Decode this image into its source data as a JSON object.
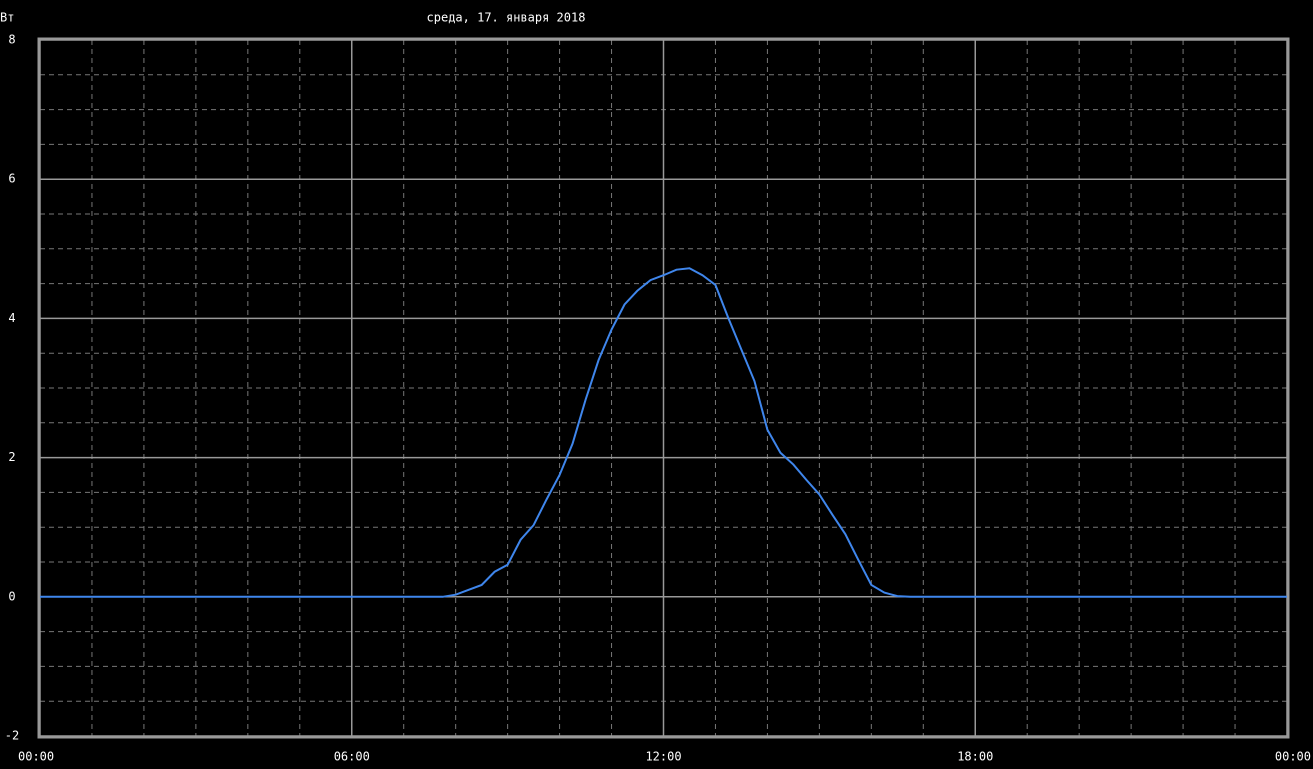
{
  "chart_data": {
    "type": "line",
    "title": "среда, 17. января 2018",
    "y_label": "Вт",
    "x": [
      0,
      7.75,
      8.0,
      8.25,
      8.5,
      8.75,
      9.0,
      9.25,
      9.5,
      9.75,
      10.0,
      10.25,
      10.5,
      10.75,
      11.0,
      11.25,
      11.5,
      11.75,
      12.0,
      12.25,
      12.5,
      12.75,
      13.0,
      13.25,
      13.5,
      13.75,
      14.0,
      14.25,
      14.5,
      14.75,
      15.0,
      15.25,
      15.5,
      15.75,
      16.0,
      16.25,
      16.5,
      16.75,
      24
    ],
    "series": [
      {
        "name": "Вт",
        "color": "#3f86ec",
        "values": [
          0,
          0,
          0.03,
          0.1,
          0.17,
          0.36,
          0.46,
          0.82,
          1.03,
          1.4,
          1.75,
          2.2,
          2.83,
          3.4,
          3.84,
          4.2,
          4.4,
          4.55,
          4.62,
          4.7,
          4.72,
          4.62,
          4.48,
          4.0,
          3.55,
          3.1,
          2.4,
          2.07,
          1.9,
          1.68,
          1.47,
          1.18,
          0.9,
          0.53,
          0.17,
          0.06,
          0.01,
          0,
          0
        ]
      }
    ],
    "xlim": [
      0,
      24
    ],
    "xticks": [
      {
        "value": 0,
        "label": "00:00"
      },
      {
        "value": 6,
        "label": "06:00"
      },
      {
        "value": 12,
        "label": "12:00"
      },
      {
        "value": 18,
        "label": "18:00"
      },
      {
        "value": 24,
        "label": "00:00"
      }
    ],
    "ylim": [
      -2,
      8
    ],
    "yticks": [
      -2,
      0,
      2,
      4,
      6,
      8
    ],
    "grid": true
  }
}
